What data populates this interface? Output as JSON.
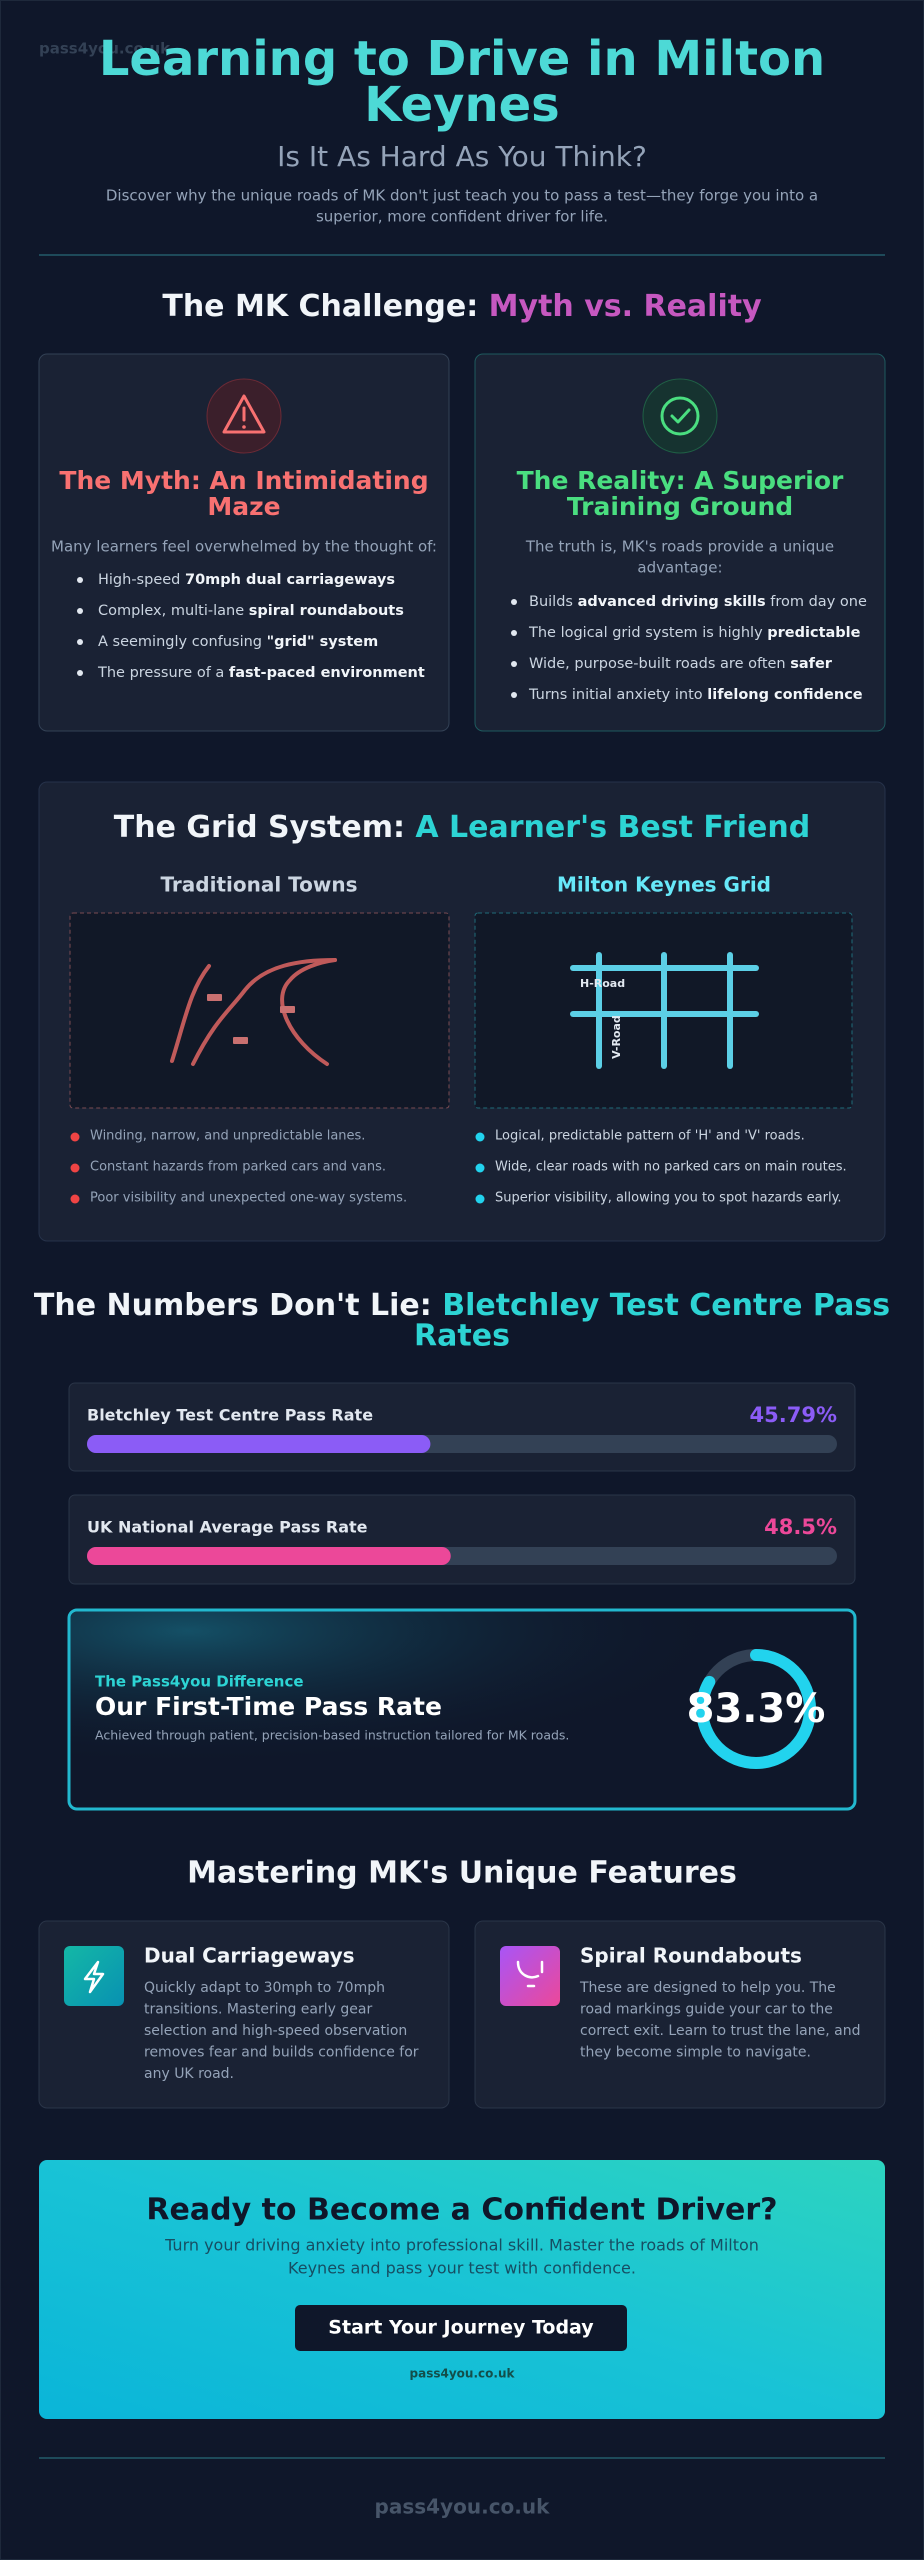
{
  "header": {
    "watermark": "pass4you.co.uk",
    "title_lines": [
      "Learning to Drive in Milton",
      "Keynes"
    ],
    "subtitle": "Is It As Hard As You Think?",
    "description_lines": [
      "Discover why the unique roads of MK don't just teach you to pass a test—they forge you into a",
      "superior, more confident driver for life."
    ]
  },
  "challenge": {
    "heading": "The MK Challenge: ",
    "heading_accent": "Myth vs. Reality",
    "myth": {
      "title_lines": [
        "The Myth: An Intimidating",
        "Maze"
      ],
      "intro_lines": [
        "Many learners feel overwhelmed by the thought of:"
      ],
      "bullets": [
        [
          {
            "t": "High-speed "
          },
          {
            "b": "70mph dual carriageways"
          }
        ],
        [
          {
            "t": "Complex, multi-lane "
          },
          {
            "b": "spiral roundabouts"
          }
        ],
        [
          {
            "t": "A seemingly confusing "
          },
          {
            "b": "\"grid\" system"
          }
        ],
        [
          {
            "t": "The pressure of a "
          },
          {
            "b": "fast-paced environment"
          }
        ]
      ]
    },
    "reality": {
      "title_lines": [
        "The Reality: A Superior",
        "Training Ground"
      ],
      "intro_lines": [
        "The truth is, MK's roads provide a unique",
        "advantage:"
      ],
      "bullets": [
        [
          {
            "t": "Builds "
          },
          {
            "b": "advanced driving skills"
          },
          {
            "t": " from day one"
          }
        ],
        [
          {
            "t": "The logical grid system is highly "
          },
          {
            "b": "predictable"
          }
        ],
        [
          {
            "t": "Wide, purpose-built roads are often "
          },
          {
            "b": "safer"
          }
        ],
        [
          {
            "t": "Turns initial anxiety into "
          },
          {
            "b": "lifelong confidence"
          }
        ]
      ]
    }
  },
  "grid": {
    "heading": "The Grid System: ",
    "heading_accent": "A Learner's Best Friend",
    "traditional": {
      "title": "Traditional Towns",
      "points": [
        "Winding, narrow, and unpredictable lanes.",
        "Constant hazards from parked cars and vans.",
        "Poor visibility and unexpected one-way systems."
      ]
    },
    "mk": {
      "title": "Milton Keynes Grid",
      "road_labels": [
        "H-Road",
        "V-Road"
      ],
      "points": [
        "Logical, predictable pattern of 'H' and 'V' roads.",
        "Wide, clear roads with no parked cars on main routes.",
        "Superior visibility, allowing you to spot hazards early."
      ]
    }
  },
  "numbers": {
    "heading": "The Numbers Don't Lie: ",
    "heading_accent_lines": [
      "Bletchley Test Centre Pass",
      "Rates"
    ],
    "xlim": [
      0,
      100
    ],
    "rates": [
      {
        "label": "Bletchley Test Centre Pass Rate",
        "value": 45.79,
        "value_label": "45.79%",
        "color": "#8b5cf6"
      },
      {
        "label": "UK National Average Pass Rate",
        "value": 48.5,
        "value_label": "48.5%",
        "color": "#ec4899"
      }
    ],
    "difference": {
      "kicker": "The Pass4you Difference",
      "title": "Our First-Time Pass Rate",
      "note": "Achieved through patient, precision-based instruction tailored for MK roads.",
      "value": 83.3,
      "value_label": "83.3%",
      "color": "#22d3ee"
    }
  },
  "features": {
    "heading": "Mastering MK's Unique Features",
    "items": [
      {
        "title": "Dual Carriageways",
        "body_lines": [
          "Quickly adapt to 30mph to 70mph",
          "transitions. Mastering early gear",
          "selection and high-speed observation",
          "removes fear and builds confidence for",
          "any UK road."
        ]
      },
      {
        "title": "Spiral Roundabouts",
        "body_lines": [
          "These are designed to help you. The",
          "road markings guide your car to the",
          "correct exit. Learn to trust the lane, and",
          "they become simple to navigate."
        ]
      }
    ]
  },
  "cta": {
    "heading": "Ready to Become a Confident Driver?",
    "text_lines": [
      "Turn your driving anxiety into professional skill. Master the roads of Milton",
      "Keynes and pass your test with confidence."
    ],
    "button": "Start Your Journey Today",
    "site": "pass4you.co.uk"
  },
  "footer": "pass4you.co.uk"
}
